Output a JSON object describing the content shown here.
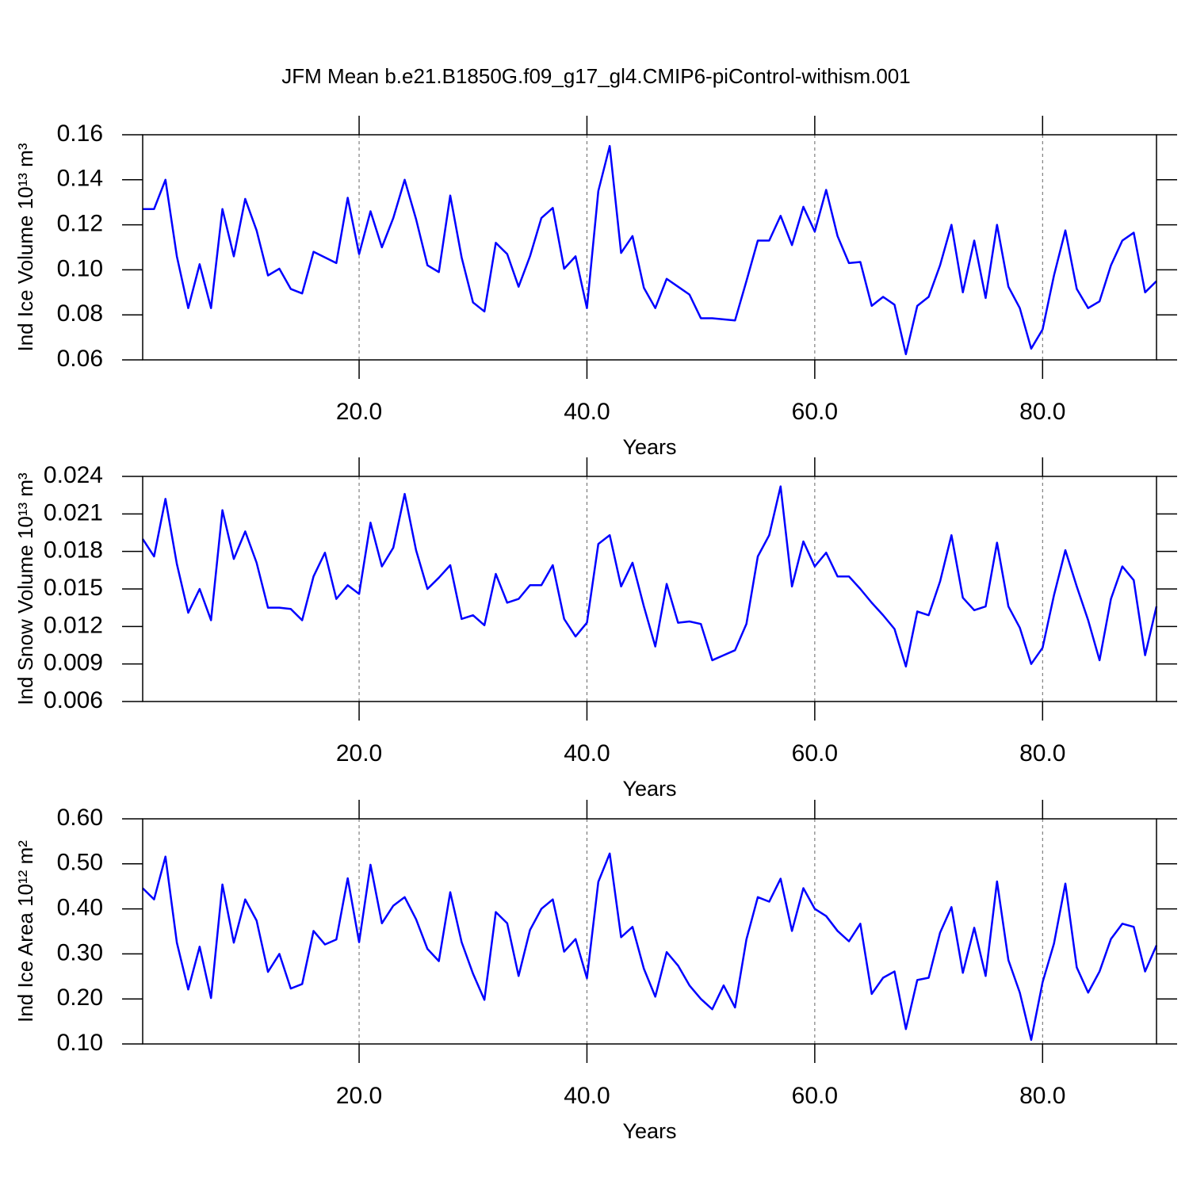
{
  "title": "JFM Mean b.e21.B1850G.f09_g17_gl4.CMIP6-piControl-withism.001",
  "chart_data": [
    {
      "type": "line",
      "xlabel": "Years",
      "ylabel": "Ind Ice Volume 10¹³ m³",
      "color": "#0000ff",
      "grid": true,
      "xlim": [
        1,
        90
      ],
      "xticks": [
        {
          "value": 20,
          "label": "20.0"
        },
        {
          "value": 40,
          "label": "40.0"
        },
        {
          "value": 60,
          "label": "60.0"
        },
        {
          "value": 80,
          "label": "80.0"
        }
      ],
      "ylim": [
        0.06,
        0.16
      ],
      "yticks": [
        0.06,
        0.08,
        {
          "value": 0.1,
          "label": "0.10"
        },
        0.12,
        0.14,
        0.16
      ],
      "x": [
        1,
        2,
        3,
        4,
        5,
        6,
        7,
        8,
        9,
        10,
        11,
        12,
        13,
        14,
        15,
        16,
        17,
        18,
        19,
        20,
        21,
        22,
        23,
        24,
        25,
        26,
        27,
        28,
        29,
        30,
        31,
        32,
        33,
        34,
        35,
        36,
        37,
        38,
        39,
        40,
        41,
        42,
        43,
        44,
        45,
        46,
        47,
        48,
        49,
        50,
        51,
        52,
        53,
        54,
        55,
        56,
        57,
        58,
        59,
        60,
        61,
        62,
        63,
        64,
        65,
        66,
        67,
        68,
        69,
        70,
        71,
        72,
        73,
        74,
        75,
        76,
        77,
        78,
        79,
        80,
        81,
        82,
        83,
        84,
        85,
        86,
        87,
        88,
        89,
        90
      ],
      "values": [
        0.127,
        0.127,
        0.14,
        0.106,
        0.083,
        0.1025,
        0.083,
        0.127,
        0.106,
        0.1315,
        0.1175,
        0.0975,
        0.1005,
        0.0915,
        0.0895,
        0.108,
        0.1055,
        0.103,
        0.132,
        0.107,
        0.126,
        0.11,
        0.123,
        0.14,
        0.1225,
        0.102,
        0.099,
        0.133,
        0.1055,
        0.0855,
        0.0815,
        0.112,
        0.107,
        0.0925,
        0.106,
        0.123,
        0.1275,
        0.1005,
        0.106,
        0.083,
        0.135,
        0.155,
        0.1075,
        0.115,
        0.092,
        0.083,
        0.096,
        0.0925,
        0.089,
        0.0785,
        0.0785,
        0.078,
        0.0775,
        0.095,
        0.113,
        0.113,
        0.124,
        0.111,
        0.128,
        0.117,
        0.1355,
        0.115,
        0.103,
        0.1035,
        0.084,
        0.088,
        0.0845,
        0.0625,
        0.084,
        0.088,
        0.102,
        0.12,
        0.09,
        0.113,
        0.0875,
        0.12,
        0.0925,
        0.083,
        0.065,
        0.0735,
        0.0975,
        0.1175,
        0.0915,
        0.083,
        0.086,
        0.102,
        0.113,
        0.1165,
        0.09,
        0.095
      ]
    },
    {
      "type": "line",
      "xlabel": "Years",
      "ylabel": "Ind Snow Volume 10¹³ m³",
      "color": "#0000ff",
      "grid": true,
      "xlim": [
        1,
        90
      ],
      "xticks": [
        {
          "value": 20,
          "label": "20.0"
        },
        {
          "value": 40,
          "label": "40.0"
        },
        {
          "value": 60,
          "label": "60.0"
        },
        {
          "value": 80,
          "label": "80.0"
        }
      ],
      "ylim": [
        0.006,
        0.024
      ],
      "yticks": [
        0.006,
        0.009,
        0.012,
        0.015,
        0.018,
        0.021,
        0.024
      ],
      "x": [
        1,
        2,
        3,
        4,
        5,
        6,
        7,
        8,
        9,
        10,
        11,
        12,
        13,
        14,
        15,
        16,
        17,
        18,
        19,
        20,
        21,
        22,
        23,
        24,
        25,
        26,
        27,
        28,
        29,
        30,
        31,
        32,
        33,
        34,
        35,
        36,
        37,
        38,
        39,
        40,
        41,
        42,
        43,
        44,
        45,
        46,
        47,
        48,
        49,
        50,
        51,
        52,
        53,
        54,
        55,
        56,
        57,
        58,
        59,
        60,
        61,
        62,
        63,
        64,
        65,
        66,
        67,
        68,
        69,
        70,
        71,
        72,
        73,
        74,
        75,
        76,
        77,
        78,
        79,
        80,
        81,
        82,
        83,
        84,
        85,
        86,
        87,
        88,
        89,
        90
      ],
      "values": [
        0.019,
        0.0176,
        0.0222,
        0.017,
        0.0131,
        0.015,
        0.0125,
        0.0213,
        0.0174,
        0.0196,
        0.0171,
        0.0135,
        0.0135,
        0.0134,
        0.0125,
        0.016,
        0.0179,
        0.0142,
        0.0153,
        0.0146,
        0.0203,
        0.0168,
        0.0183,
        0.0226,
        0.0181,
        0.015,
        0.0159,
        0.0169,
        0.0126,
        0.0129,
        0.0121,
        0.0162,
        0.0139,
        0.0142,
        0.0153,
        0.0153,
        0.0169,
        0.0126,
        0.0112,
        0.0123,
        0.0186,
        0.0193,
        0.0152,
        0.0171,
        0.0136,
        0.0104,
        0.0154,
        0.0123,
        0.0124,
        0.0122,
        0.0093,
        0.0097,
        0.0101,
        0.0122,
        0.0176,
        0.0193,
        0.0232,
        0.0152,
        0.0188,
        0.0168,
        0.0179,
        0.016,
        0.016,
        0.015,
        0.0139,
        0.0129,
        0.0118,
        0.0088,
        0.0132,
        0.0129,
        0.0156,
        0.0193,
        0.0143,
        0.0133,
        0.0136,
        0.0187,
        0.0136,
        0.0119,
        0.009,
        0.0103,
        0.0145,
        0.0181,
        0.0152,
        0.0125,
        0.0093,
        0.0142,
        0.0168,
        0.0157,
        0.0097,
        0.0136
      ]
    },
    {
      "type": "line",
      "xlabel": "Years",
      "ylabel": "Ind Ice Area 10¹² m²",
      "color": "#0000ff",
      "grid": true,
      "xlim": [
        1,
        90
      ],
      "xticks": [
        {
          "value": 20,
          "label": "20.0"
        },
        {
          "value": 40,
          "label": "40.0"
        },
        {
          "value": 60,
          "label": "60.0"
        },
        {
          "value": 80,
          "label": "80.0"
        }
      ],
      "ylim": [
        0.1,
        0.6
      ],
      "yticks": [
        {
          "value": 0.1,
          "label": "0.10"
        },
        {
          "value": 0.2,
          "label": "0.20"
        },
        {
          "value": 0.3,
          "label": "0.30"
        },
        {
          "value": 0.4,
          "label": "0.40"
        },
        {
          "value": 0.5,
          "label": "0.50"
        },
        {
          "value": 0.6,
          "label": "0.60"
        }
      ],
      "x": [
        1,
        2,
        3,
        4,
        5,
        6,
        7,
        8,
        9,
        10,
        11,
        12,
        13,
        14,
        15,
        16,
        17,
        18,
        19,
        20,
        21,
        22,
        23,
        24,
        25,
        26,
        27,
        28,
        29,
        30,
        31,
        32,
        33,
        34,
        35,
        36,
        37,
        38,
        39,
        40,
        41,
        42,
        43,
        44,
        45,
        46,
        47,
        48,
        49,
        50,
        51,
        52,
        53,
        54,
        55,
        56,
        57,
        58,
        59,
        60,
        61,
        62,
        63,
        64,
        65,
        66,
        67,
        68,
        69,
        70,
        71,
        72,
        73,
        74,
        75,
        76,
        77,
        78,
        79,
        80,
        81,
        82,
        83,
        84,
        85,
        86,
        87,
        88,
        89,
        90
      ],
      "values": [
        0.446,
        0.421,
        0.516,
        0.325,
        0.221,
        0.316,
        0.202,
        0.454,
        0.325,
        0.421,
        0.374,
        0.26,
        0.3,
        0.223,
        0.233,
        0.351,
        0.321,
        0.332,
        0.468,
        0.326,
        0.498,
        0.368,
        0.407,
        0.426,
        0.377,
        0.311,
        0.284,
        0.437,
        0.326,
        0.256,
        0.198,
        0.393,
        0.368,
        0.251,
        0.353,
        0.4,
        0.421,
        0.305,
        0.333,
        0.246,
        0.46,
        0.523,
        0.337,
        0.36,
        0.267,
        0.205,
        0.304,
        0.274,
        0.23,
        0.2,
        0.177,
        0.23,
        0.181,
        0.332,
        0.426,
        0.416,
        0.467,
        0.351,
        0.446,
        0.4,
        0.384,
        0.351,
        0.328,
        0.367,
        0.211,
        0.247,
        0.261,
        0.133,
        0.242,
        0.247,
        0.347,
        0.404,
        0.258,
        0.358,
        0.251,
        0.461,
        0.286,
        0.214,
        0.109,
        0.237,
        0.323,
        0.456,
        0.27,
        0.214,
        0.261,
        0.333,
        0.367,
        0.36,
        0.261,
        0.319
      ]
    }
  ]
}
